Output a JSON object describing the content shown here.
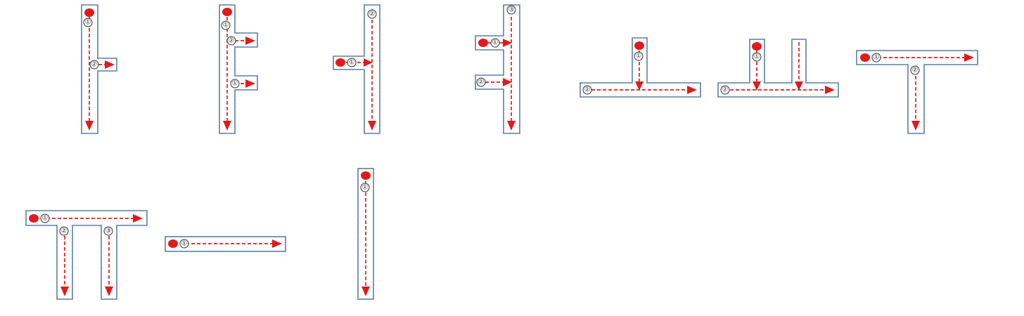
{
  "colors": {
    "path_line": "#e11b1b",
    "start_dot": "#e11b1b",
    "shape_outline": "#5b7fa6",
    "shape_fill": "#ffffff",
    "label_outline": "#333333"
  },
  "icons": {
    "start": "start-dot-icon",
    "direction": "arrowhead-icon"
  },
  "labels": {
    "one": "①",
    "two": "②",
    "three": "③"
  },
  "patterns": [
    {
      "id": "vertical-with-right-branch",
      "step_labels": [
        "①",
        "②"
      ]
    },
    {
      "id": "vertical-with-two-right-branches",
      "step_labels": [
        "①",
        "②",
        "①"
      ]
    },
    {
      "id": "vertical-with-left-entry",
      "step_labels": [
        "②",
        "①"
      ]
    },
    {
      "id": "vertical-with-two-left-entries",
      "step_labels": [
        "③",
        "①",
        "②"
      ]
    },
    {
      "id": "inverted-t",
      "step_labels": [
        "①",
        "②"
      ]
    },
    {
      "id": "double-inverted-t",
      "step_labels": [
        "①",
        "②"
      ]
    },
    {
      "id": "t-shape",
      "step_labels": [
        "①",
        "②"
      ]
    },
    {
      "id": "pi-shape",
      "step_labels": [
        "①",
        "②",
        "③"
      ]
    },
    {
      "id": "horizontal-bar",
      "step_labels": [
        "①"
      ]
    },
    {
      "id": "vertical-bar",
      "step_labels": [
        "①"
      ]
    }
  ]
}
